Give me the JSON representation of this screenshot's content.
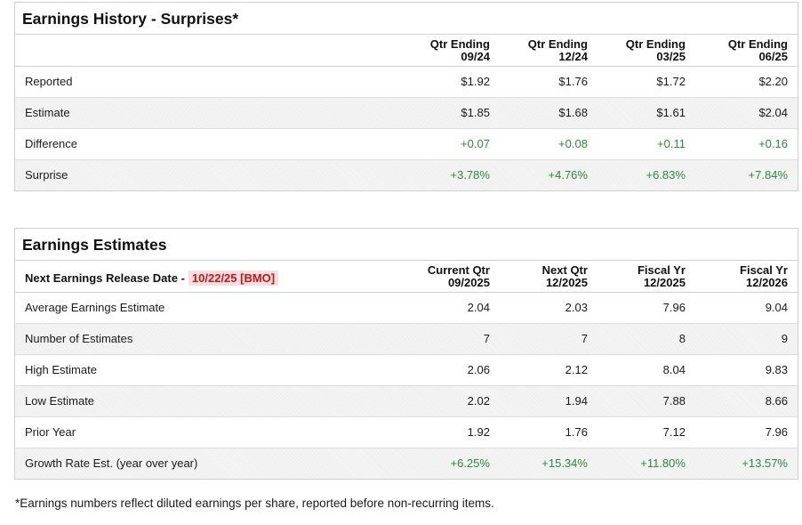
{
  "history": {
    "title": "Earnings History - Surprises*",
    "columns": [
      {
        "line1": "Qtr Ending",
        "line2": "09/24"
      },
      {
        "line1": "Qtr Ending",
        "line2": "12/24"
      },
      {
        "line1": "Qtr Ending",
        "line2": "03/25"
      },
      {
        "line1": "Qtr Ending",
        "line2": "06/25"
      }
    ],
    "rows": [
      {
        "label": "Reported",
        "values": [
          "$1.92",
          "$1.76",
          "$1.72",
          "$2.20"
        ]
      },
      {
        "label": "Estimate",
        "values": [
          "$1.85",
          "$1.68",
          "$1.61",
          "$2.04"
        ]
      },
      {
        "label": "Difference",
        "values": [
          "+0.07",
          "+0.08",
          "+0.11",
          "+0.16"
        ]
      },
      {
        "label": "Surprise",
        "values": [
          "+3.78%",
          "+4.76%",
          "+6.83%",
          "+7.84%"
        ]
      }
    ]
  },
  "estimates": {
    "title": "Earnings Estimates",
    "release_label": "Next Earnings Release Date -",
    "release_date": "10/22/25 [BMO]",
    "columns": [
      {
        "line1": "Current Qtr",
        "line2": "09/2025"
      },
      {
        "line1": "Next Qtr",
        "line2": "12/2025"
      },
      {
        "line1": "Fiscal Yr",
        "line2": "12/2025"
      },
      {
        "line1": "Fiscal Yr",
        "line2": "12/2026"
      }
    ],
    "rows": [
      {
        "label": "Average Earnings Estimate",
        "values": [
          "2.04",
          "2.03",
          "7.96",
          "9.04"
        ]
      },
      {
        "label": "Number of Estimates",
        "values": [
          "7",
          "7",
          "8",
          "9"
        ]
      },
      {
        "label": "High Estimate",
        "values": [
          "2.06",
          "2.12",
          "8.04",
          "9.83"
        ]
      },
      {
        "label": "Low Estimate",
        "values": [
          "2.02",
          "1.94",
          "7.88",
          "8.66"
        ]
      },
      {
        "label": "Prior Year",
        "values": [
          "1.92",
          "1.76",
          "7.12",
          "7.96"
        ]
      },
      {
        "label": "Growth Rate Est. (year over year)",
        "values": [
          "+6.25%",
          "+15.34%",
          "+11.80%",
          "+13.57%"
        ]
      }
    ]
  },
  "footnote": "*Earnings numbers reflect diluted earnings per share, reported before non-recurring items.",
  "colors": {
    "positive": "#2a8a3e",
    "badge_text": "#c4141c",
    "badge_bg": "#f9dede"
  }
}
